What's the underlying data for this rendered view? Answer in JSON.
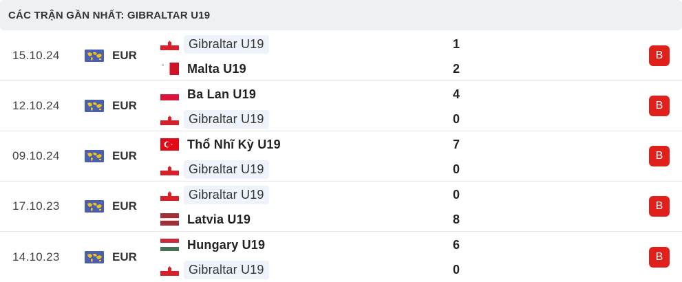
{
  "header": {
    "title": "CÁC TRẬN GẦN NHẤT: GIBRALTAR U19"
  },
  "colors": {
    "loss": "#e0201b",
    "highlight": "#eef3fb",
    "header_bg": "#eef0f3"
  },
  "matches": [
    {
      "date": "15.10.24",
      "competition": "EUR",
      "competition_icon": "world-map-icon",
      "home": {
        "name": "Gibraltar U19",
        "flag": "gibraltar",
        "score": "1",
        "focus": true,
        "winner": false
      },
      "away": {
        "name": "Malta U19",
        "flag": "malta",
        "score": "2",
        "focus": false,
        "winner": true
      },
      "result": "B"
    },
    {
      "date": "12.10.24",
      "competition": "EUR",
      "competition_icon": "world-map-icon",
      "home": {
        "name": "Ba Lan U19",
        "flag": "poland",
        "score": "4",
        "focus": false,
        "winner": true
      },
      "away": {
        "name": "Gibraltar U19",
        "flag": "gibraltar",
        "score": "0",
        "focus": true,
        "winner": false
      },
      "result": "B"
    },
    {
      "date": "09.10.24",
      "competition": "EUR",
      "competition_icon": "world-map-icon",
      "home": {
        "name": "Thổ Nhĩ Kỳ U19",
        "flag": "turkey",
        "score": "7",
        "focus": false,
        "winner": true
      },
      "away": {
        "name": "Gibraltar U19",
        "flag": "gibraltar",
        "score": "0",
        "focus": true,
        "winner": false
      },
      "result": "B"
    },
    {
      "date": "17.10.23",
      "competition": "EUR",
      "competition_icon": "world-map-icon",
      "home": {
        "name": "Gibraltar U19",
        "flag": "gibraltar",
        "score": "0",
        "focus": true,
        "winner": false
      },
      "away": {
        "name": "Latvia U19",
        "flag": "latvia",
        "score": "8",
        "focus": false,
        "winner": true
      },
      "result": "B"
    },
    {
      "date": "14.10.23",
      "competition": "EUR",
      "competition_icon": "world-map-icon",
      "home": {
        "name": "Hungary U19",
        "flag": "hungary",
        "score": "6",
        "focus": false,
        "winner": true
      },
      "away": {
        "name": "Gibraltar U19",
        "flag": "gibraltar",
        "score": "0",
        "focus": true,
        "winner": false
      },
      "result": "B"
    }
  ]
}
